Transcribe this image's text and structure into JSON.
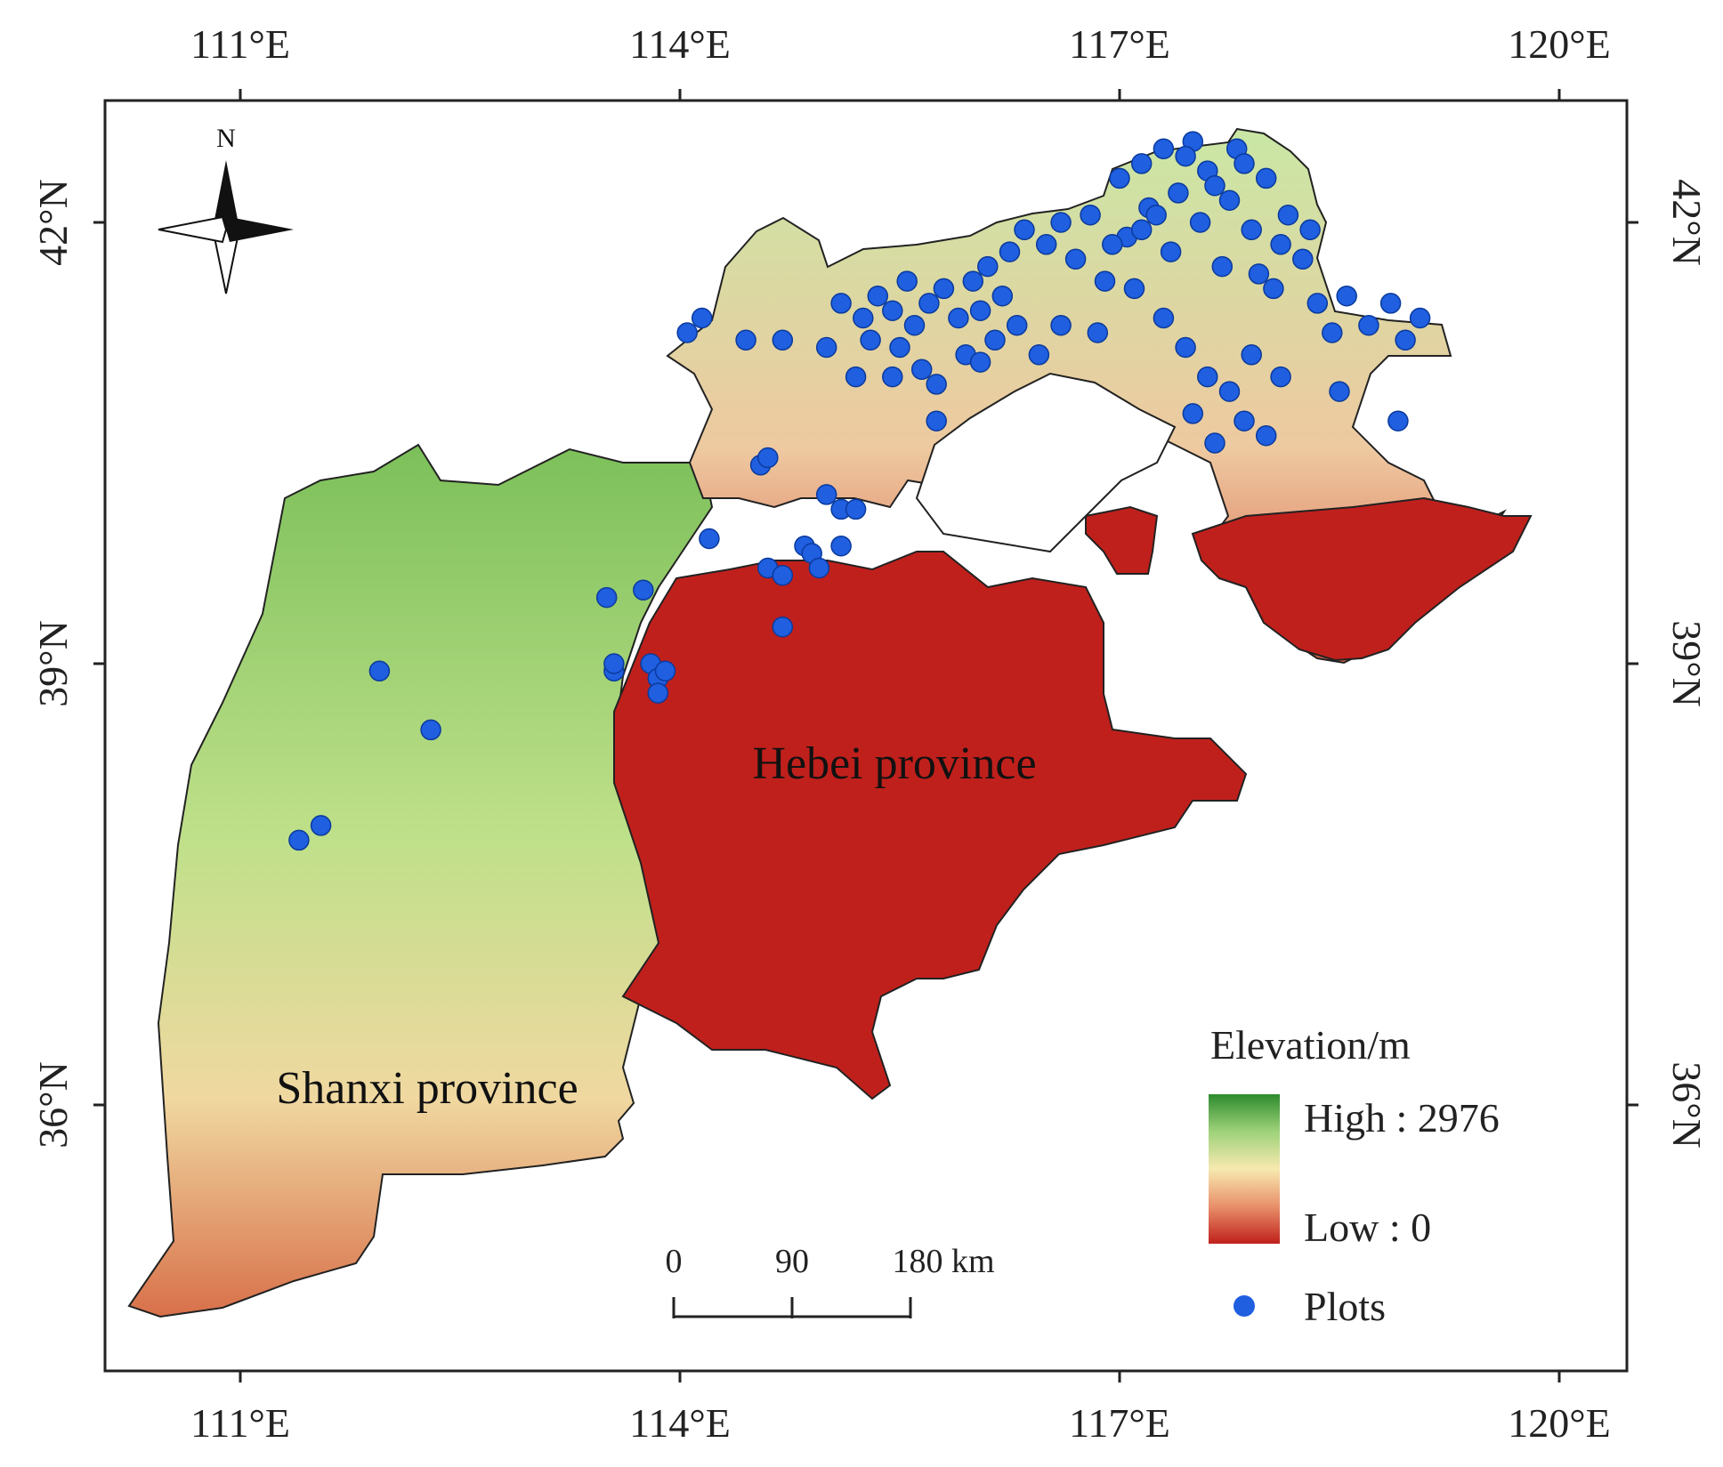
{
  "map": {
    "lon_ticks": [
      "111°E",
      "114°E",
      "117°E",
      "120°E"
    ],
    "lat_ticks": [
      "42°N",
      "39°N",
      "36°N"
    ],
    "north_label": "N",
    "regions": [
      {
        "name": "Hebei province"
      },
      {
        "name": "Shanxi province"
      }
    ],
    "legend": {
      "title": "Elevation/m",
      "high_label": "High : 2976",
      "low_label": "Low : 0",
      "plots_label": "Plots",
      "gradient_colors": [
        "#2e8b2e",
        "#9fd27a",
        "#f7e9b0",
        "#e8906a",
        "#c0201c"
      ],
      "plot_color": "#1f5fe0"
    },
    "scale_bar": {
      "labels": [
        "0",
        "90",
        "180 km"
      ]
    },
    "colors": {
      "lowland": "#c0201c",
      "highland": "#2e8b2e",
      "border": "#222222"
    },
    "plots": [
      {
        "lon": 111.4,
        "lat": 37.8
      },
      {
        "lon": 111.55,
        "lat": 37.9
      },
      {
        "lon": 111.95,
        "lat": 38.95
      },
      {
        "lon": 112.3,
        "lat": 38.55
      },
      {
        "lon": 113.5,
        "lat": 39.45
      },
      {
        "lon": 113.75,
        "lat": 39.5
      },
      {
        "lon": 113.55,
        "lat": 38.95
      },
      {
        "lon": 113.55,
        "lat": 39.0
      },
      {
        "lon": 113.8,
        "lat": 39.0
      },
      {
        "lon": 113.85,
        "lat": 38.9
      },
      {
        "lon": 113.85,
        "lat": 38.8
      },
      {
        "lon": 113.9,
        "lat": 38.95
      },
      {
        "lon": 114.2,
        "lat": 39.85
      },
      {
        "lon": 114.55,
        "lat": 40.35
      },
      {
        "lon": 114.6,
        "lat": 40.4
      },
      {
        "lon": 114.6,
        "lat": 39.65
      },
      {
        "lon": 114.7,
        "lat": 39.6
      },
      {
        "lon": 114.7,
        "lat": 39.25
      },
      {
        "lon": 114.85,
        "lat": 39.8
      },
      {
        "lon": 114.9,
        "lat": 39.75
      },
      {
        "lon": 114.95,
        "lat": 39.65
      },
      {
        "lon": 115.0,
        "lat": 40.15
      },
      {
        "lon": 115.1,
        "lat": 40.05
      },
      {
        "lon": 115.2,
        "lat": 40.05
      },
      {
        "lon": 115.1,
        "lat": 39.8
      },
      {
        "lon": 114.05,
        "lat": 41.25
      },
      {
        "lon": 114.15,
        "lat": 41.35
      },
      {
        "lon": 114.45,
        "lat": 41.2
      },
      {
        "lon": 114.7,
        "lat": 41.2
      },
      {
        "lon": 115.0,
        "lat": 41.15
      },
      {
        "lon": 115.1,
        "lat": 41.45
      },
      {
        "lon": 115.25,
        "lat": 41.35
      },
      {
        "lon": 115.35,
        "lat": 41.5
      },
      {
        "lon": 115.45,
        "lat": 41.4
      },
      {
        "lon": 115.55,
        "lat": 41.6
      },
      {
        "lon": 115.6,
        "lat": 41.3
      },
      {
        "lon": 115.7,
        "lat": 41.45
      },
      {
        "lon": 115.8,
        "lat": 41.55
      },
      {
        "lon": 115.9,
        "lat": 41.35
      },
      {
        "lon": 116.0,
        "lat": 41.6
      },
      {
        "lon": 116.1,
        "lat": 41.7
      },
      {
        "lon": 116.2,
        "lat": 41.5
      },
      {
        "lon": 116.25,
        "lat": 41.8
      },
      {
        "lon": 116.3,
        "lat": 41.3
      },
      {
        "lon": 115.75,
        "lat": 40.9
      },
      {
        "lon": 115.95,
        "lat": 41.1
      },
      {
        "lon": 116.05,
        "lat": 41.05
      },
      {
        "lon": 116.15,
        "lat": 41.2
      },
      {
        "lon": 116.35,
        "lat": 41.95
      },
      {
        "lon": 116.5,
        "lat": 41.85
      },
      {
        "lon": 116.6,
        "lat": 42.0
      },
      {
        "lon": 116.7,
        "lat": 41.75
      },
      {
        "lon": 116.8,
        "lat": 42.05
      },
      {
        "lon": 116.9,
        "lat": 41.6
      },
      {
        "lon": 117.0,
        "lat": 42.3
      },
      {
        "lon": 117.05,
        "lat": 41.9
      },
      {
        "lon": 117.15,
        "lat": 42.4
      },
      {
        "lon": 117.2,
        "lat": 42.1
      },
      {
        "lon": 117.3,
        "lat": 42.5
      },
      {
        "lon": 117.35,
        "lat": 41.8
      },
      {
        "lon": 117.4,
        "lat": 42.2
      },
      {
        "lon": 117.5,
        "lat": 42.55
      },
      {
        "lon": 117.55,
        "lat": 42.0
      },
      {
        "lon": 117.6,
        "lat": 42.35
      },
      {
        "lon": 117.7,
        "lat": 41.7
      },
      {
        "lon": 117.75,
        "lat": 42.15
      },
      {
        "lon": 117.8,
        "lat": 42.5
      },
      {
        "lon": 117.9,
        "lat": 41.95
      },
      {
        "lon": 118.0,
        "lat": 42.3
      },
      {
        "lon": 118.05,
        "lat": 41.55
      },
      {
        "lon": 118.15,
        "lat": 42.05
      },
      {
        "lon": 118.25,
        "lat": 41.75
      },
      {
        "lon": 118.35,
        "lat": 41.45
      },
      {
        "lon": 118.45,
        "lat": 41.25
      },
      {
        "lon": 118.55,
        "lat": 41.5
      },
      {
        "lon": 118.7,
        "lat": 41.3
      },
      {
        "lon": 118.85,
        "lat": 41.45
      },
      {
        "lon": 118.95,
        "lat": 41.2
      },
      {
        "lon": 119.05,
        "lat": 41.35
      },
      {
        "lon": 117.1,
        "lat": 41.55
      },
      {
        "lon": 117.3,
        "lat": 41.35
      },
      {
        "lon": 117.45,
        "lat": 41.15
      },
      {
        "lon": 117.6,
        "lat": 40.95
      },
      {
        "lon": 117.75,
        "lat": 40.85
      },
      {
        "lon": 117.9,
        "lat": 41.1
      },
      {
        "lon": 118.1,
        "lat": 40.95
      },
      {
        "lon": 117.5,
        "lat": 40.7
      },
      {
        "lon": 117.65,
        "lat": 40.5
      },
      {
        "lon": 117.85,
        "lat": 40.65
      },
      {
        "lon": 118.0,
        "lat": 40.55
      },
      {
        "lon": 118.5,
        "lat": 40.85
      },
      {
        "lon": 118.9,
        "lat": 40.65
      },
      {
        "lon": 115.75,
        "lat": 40.65
      },
      {
        "lon": 116.45,
        "lat": 41.1
      },
      {
        "lon": 116.6,
        "lat": 41.3
      },
      {
        "lon": 116.85,
        "lat": 41.25
      },
      {
        "lon": 117.25,
        "lat": 42.05
      },
      {
        "lon": 117.45,
        "lat": 42.45
      },
      {
        "lon": 117.65,
        "lat": 42.25
      },
      {
        "lon": 117.85,
        "lat": 42.4
      },
      {
        "lon": 118.1,
        "lat": 41.85
      },
      {
        "lon": 118.3,
        "lat": 41.95
      },
      {
        "lon": 117.95,
        "lat": 41.65
      },
      {
        "lon": 117.15,
        "lat": 41.95
      },
      {
        "lon": 116.95,
        "lat": 41.85
      },
      {
        "lon": 115.3,
        "lat": 41.2
      },
      {
        "lon": 115.5,
        "lat": 41.15
      },
      {
        "lon": 115.2,
        "lat": 40.95
      },
      {
        "lon": 115.45,
        "lat": 40.95
      },
      {
        "lon": 115.65,
        "lat": 41.0
      },
      {
        "lon": 116.05,
        "lat": 41.4
      }
    ]
  }
}
